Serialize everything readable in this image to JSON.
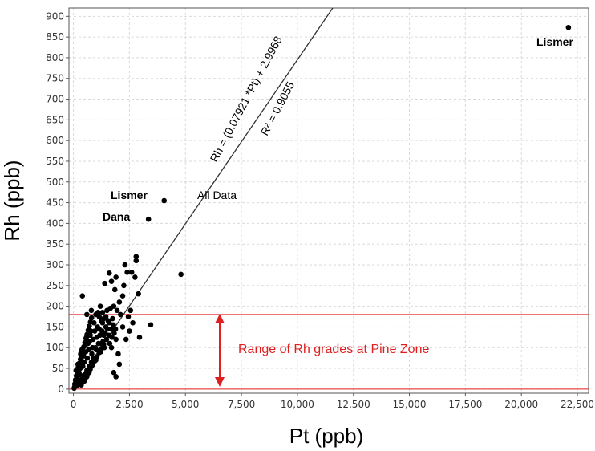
{
  "chart_data": {
    "type": "scatter",
    "xlabel": "Pt (ppb)",
    "ylabel": "Rh (ppb)",
    "xlim": [
      -200,
      23000
    ],
    "ylim": [
      -10,
      920
    ],
    "x_ticks": [
      0,
      2500,
      5000,
      7500,
      10000,
      12500,
      15000,
      17500,
      20000,
      22500
    ],
    "x_tick_labels": [
      "0",
      "2,500",
      "5,000",
      "7,500",
      "10,000",
      "12,500",
      "15,000",
      "17,500",
      "20,000",
      "22,500"
    ],
    "y_ticks": [
      0,
      50,
      100,
      150,
      200,
      250,
      300,
      350,
      400,
      450,
      500,
      550,
      600,
      650,
      700,
      750,
      800,
      850,
      900
    ],
    "y_tick_labels": [
      "0",
      "50",
      "100",
      "150",
      "200",
      "250",
      "300",
      "350",
      "400",
      "450",
      "500",
      "550",
      "600",
      "650",
      "700",
      "750",
      "800",
      "850",
      "900"
    ],
    "grid": true,
    "series_color": "#000000",
    "points": [
      [
        22100,
        873
      ],
      [
        4050,
        455
      ],
      [
        3350,
        410
      ],
      [
        4800,
        277
      ],
      [
        3450,
        155
      ],
      [
        2950,
        125
      ],
      [
        2800,
        320
      ],
      [
        2800,
        310
      ],
      [
        2600,
        282
      ],
      [
        2400,
        282
      ],
      [
        2750,
        270
      ],
      [
        2250,
        250
      ],
      [
        2200,
        225
      ],
      [
        2050,
        210
      ],
      [
        1850,
        240
      ],
      [
        2300,
        300
      ],
      [
        1600,
        280
      ],
      [
        1400,
        255
      ],
      [
        1700,
        260
      ],
      [
        1900,
        270
      ],
      [
        2450,
        175
      ],
      [
        2650,
        160
      ],
      [
        2500,
        140
      ],
      [
        2550,
        190
      ],
      [
        2900,
        230
      ],
      [
        2100,
        180
      ],
      [
        2200,
        150
      ],
      [
        2350,
        120
      ],
      [
        1950,
        190
      ],
      [
        1800,
        200
      ],
      [
        400,
        225
      ],
      [
        600,
        180
      ],
      [
        800,
        190
      ],
      [
        1000,
        180
      ],
      [
        1200,
        200
      ],
      [
        1100,
        185
      ],
      [
        1500,
        190
      ],
      [
        1650,
        195
      ],
      [
        1750,
        170
      ],
      [
        1450,
        150
      ],
      [
        1550,
        165
      ],
      [
        1300,
        160
      ],
      [
        1900,
        120
      ],
      [
        2000,
        85
      ],
      [
        1800,
        40
      ],
      [
        1900,
        30
      ],
      [
        2050,
        60
      ],
      [
        1700,
        100
      ],
      [
        1350,
        130
      ],
      [
        1250,
        110
      ],
      [
        1150,
        145
      ],
      [
        1050,
        125
      ],
      [
        950,
        140
      ],
      [
        850,
        100
      ],
      [
        750,
        130
      ],
      [
        650,
        110
      ],
      [
        550,
        90
      ],
      [
        450,
        80
      ],
      [
        350,
        70
      ],
      [
        300,
        50
      ],
      [
        250,
        40
      ],
      [
        200,
        60
      ],
      [
        150,
        30
      ],
      [
        100,
        20
      ],
      [
        80,
        10
      ],
      [
        50,
        5
      ],
      [
        120,
        45
      ],
      [
        180,
        25
      ],
      [
        220,
        15
      ],
      [
        280,
        35
      ],
      [
        320,
        85
      ],
      [
        380,
        95
      ],
      [
        420,
        55
      ],
      [
        480,
        65
      ],
      [
        520,
        105
      ],
      [
        580,
        125
      ],
      [
        620,
        75
      ],
      [
        680,
        95
      ],
      [
        720,
        115
      ],
      [
        780,
        140
      ],
      [
        820,
        85
      ],
      [
        880,
        120
      ],
      [
        920,
        160
      ],
      [
        980,
        100
      ],
      [
        1020,
        95
      ],
      [
        1080,
        150
      ],
      [
        1120,
        110
      ],
      [
        1180,
        130
      ],
      [
        1220,
        90
      ],
      [
        1280,
        140
      ],
      [
        1320,
        115
      ],
      [
        1380,
        100
      ],
      [
        1420,
        135
      ],
      [
        1480,
        120
      ],
      [
        1520,
        145
      ],
      [
        1580,
        130
      ],
      [
        1620,
        110
      ],
      [
        1680,
        145
      ],
      [
        1720,
        125
      ],
      [
        1780,
        155
      ],
      [
        1820,
        135
      ],
      [
        1880,
        145
      ],
      [
        500,
        35
      ],
      [
        600,
        45
      ],
      [
        700,
        55
      ],
      [
        800,
        65
      ],
      [
        900,
        75
      ],
      [
        1000,
        70
      ],
      [
        300,
        15
      ],
      [
        400,
        25
      ],
      [
        500,
        20
      ],
      [
        600,
        30
      ],
      [
        700,
        40
      ],
      [
        350,
        10
      ],
      [
        150,
        8
      ],
      [
        250,
        12
      ],
      [
        450,
        18
      ],
      [
        550,
        28
      ],
      [
        650,
        38
      ],
      [
        750,
        48
      ],
      [
        850,
        58
      ],
      [
        950,
        68
      ],
      [
        1050,
        78
      ],
      [
        1150,
        88
      ],
      [
        1250,
        98
      ],
      [
        1350,
        108
      ],
      [
        30,
        2
      ],
      [
        60,
        12
      ],
      [
        90,
        22
      ],
      [
        130,
        32
      ],
      [
        170,
        42
      ],
      [
        210,
        52
      ],
      [
        260,
        62
      ],
      [
        310,
        72
      ],
      [
        360,
        82
      ],
      [
        410,
        92
      ],
      [
        460,
        102
      ],
      [
        510,
        112
      ],
      [
        560,
        122
      ],
      [
        610,
        132
      ],
      [
        660,
        142
      ],
      [
        710,
        152
      ],
      [
        760,
        162
      ],
      [
        810,
        172
      ],
      [
        1450,
        175
      ],
      [
        1600,
        160
      ],
      [
        1350,
        170
      ],
      [
        1250,
        165
      ],
      [
        1150,
        175
      ],
      [
        1300,
        185
      ]
    ],
    "trendline": {
      "slope": 0.07921,
      "intercept": 2.9968,
      "color": "#333333"
    },
    "annotations": [
      {
        "text": "Lismer",
        "x": 22100,
        "y": 873,
        "style": "bold"
      },
      {
        "text": "Lismer",
        "x": 4050,
        "y": 455,
        "style": "bold"
      },
      {
        "text": "Dana",
        "x": 3350,
        "y": 410,
        "style": "bold"
      },
      {
        "text": "All Data",
        "style": "plain"
      },
      {
        "text": "Rh = (0.07921 *Pt) + 2.9968",
        "style": "equation"
      },
      {
        "text": "R² = 0.9055",
        "style": "equation"
      }
    ],
    "range_lines": {
      "values": [
        0,
        180
      ],
      "color": "#e02020"
    },
    "range_label": "Range of Rh grades at Pine Zone"
  }
}
